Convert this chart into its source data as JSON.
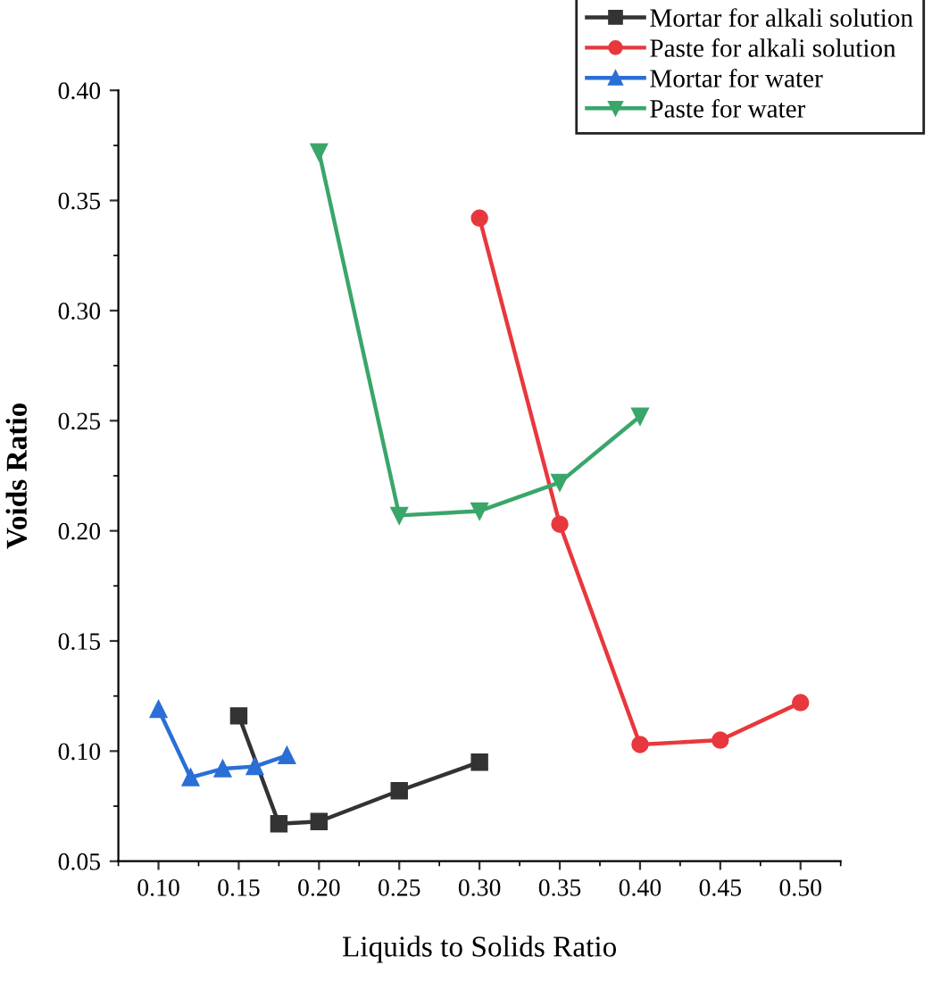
{
  "chart_data": {
    "type": "line",
    "xlabel": "Liquids to Solids Ratio",
    "ylabel": "Voids Ratio",
    "xlim": [
      0.075,
      0.525
    ],
    "xticks": [
      {
        "value": 0.1,
        "label": "0.10"
      },
      {
        "value": 0.15,
        "label": "0.15"
      },
      {
        "value": 0.2,
        "label": "0.20"
      },
      {
        "value": 0.25,
        "label": "0.25"
      },
      {
        "value": 0.3,
        "label": "0.30"
      },
      {
        "value": 0.35,
        "label": "0.35"
      },
      {
        "value": 0.4,
        "label": "0.40"
      },
      {
        "value": 0.45,
        "label": "0.45"
      },
      {
        "value": 0.5,
        "label": "0.50"
      }
    ],
    "ylim": [
      0.05,
      0.4
    ],
    "yticks": [
      {
        "value": 0.05,
        "label": "0.05"
      },
      {
        "value": 0.1,
        "label": "0.10"
      },
      {
        "value": 0.15,
        "label": "0.15"
      },
      {
        "value": 0.2,
        "label": "0.20"
      },
      {
        "value": 0.25,
        "label": "0.25"
      },
      {
        "value": 0.3,
        "label": "0.30"
      },
      {
        "value": 0.35,
        "label": "0.35"
      },
      {
        "value": 0.4,
        "label": "0.40"
      }
    ],
    "legend": "top right",
    "grid": false,
    "series": [
      {
        "name": "Mortar for alkali solution",
        "color": "#333333",
        "marker": "square",
        "x": [
          0.15,
          0.175,
          0.2,
          0.25,
          0.3
        ],
        "values": [
          0.116,
          0.067,
          0.068,
          0.082,
          0.095
        ]
      },
      {
        "name": "Paste for alkali solution",
        "color": "#e8383d",
        "marker": "circle",
        "x": [
          0.3,
          0.35,
          0.4,
          0.45,
          0.5
        ],
        "values": [
          0.342,
          0.203,
          0.103,
          0.105,
          0.122
        ]
      },
      {
        "name": "Mortar for water",
        "color": "#2a6fd6",
        "marker": "triangle",
        "x": [
          0.1,
          0.12,
          0.14,
          0.16,
          0.18
        ],
        "values": [
          0.119,
          0.088,
          0.092,
          0.093,
          0.098
        ]
      },
      {
        "name": "Paste for water",
        "color": "#3aa66a",
        "marker": "triangle_down",
        "x": [
          0.2,
          0.25,
          0.3,
          0.35,
          0.4
        ],
        "values": [
          0.372,
          0.207,
          0.209,
          0.222,
          0.252
        ]
      }
    ]
  }
}
